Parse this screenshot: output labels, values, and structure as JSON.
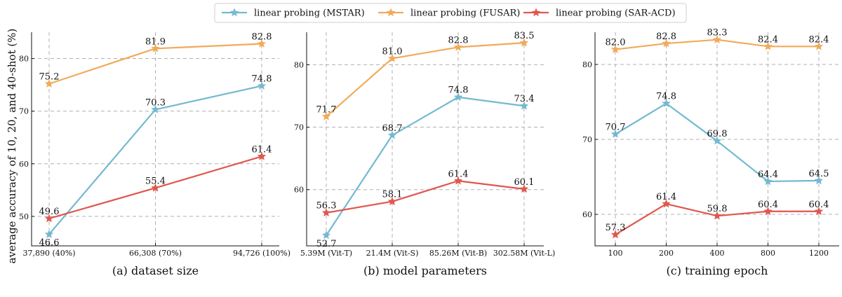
{
  "colors": {
    "mstar": "#74b9d0",
    "fusar": "#f2aa5a",
    "saracd": "#e0574e"
  },
  "legend": {
    "placement": "top-center",
    "entries": [
      {
        "label": "linear probing (MSTAR)",
        "color": "#74b9d0",
        "marker": "star"
      },
      {
        "label": "linear probing (FUSAR)",
        "color": "#f2aa5a",
        "marker": "star"
      },
      {
        "label": "linear probing (SAR-ACD)",
        "color": "#e0574e",
        "marker": "star"
      }
    ]
  },
  "chart_data": [
    {
      "type": "line",
      "xlabel": "(a) dataset size",
      "ylabel": "average accuracy of 10, 20, and 40-shot (%)",
      "x": [
        37890,
        66308,
        94726
      ],
      "xticks": [
        {
          "value": 37890,
          "label": "37,890 (40%)"
        },
        {
          "value": 66308,
          "label": "66,308 (70%)"
        },
        {
          "value": 94726,
          "label": "94,726 (100%)"
        }
      ],
      "xlim": [
        37890,
        94726
      ],
      "ylim": [
        44.4,
        85
      ],
      "yticks": [
        50,
        60,
        70,
        80
      ],
      "grid": true,
      "series": [
        {
          "name": "linear probing (MSTAR)",
          "color": "#74b9d0",
          "values": [
            46.6,
            70.3,
            74.8
          ],
          "labels": [
            "46.6",
            "70.3",
            "74.8"
          ]
        },
        {
          "name": "linear probing (FUSAR)",
          "color": "#f2aa5a",
          "values": [
            75.2,
            81.9,
            82.8
          ],
          "labels": [
            "75.2",
            "81.9",
            "82.8"
          ]
        },
        {
          "name": "linear probing (SAR-ACD)",
          "color": "#e0574e",
          "values": [
            49.6,
            55.4,
            61.4
          ],
          "labels": [
            "49.6",
            "55.4",
            "61.4"
          ]
        }
      ]
    },
    {
      "type": "line",
      "xlabel": "(b) model parameters",
      "ylabel": "",
      "x": [
        0,
        1,
        2,
        3
      ],
      "xticks": [
        {
          "value": 0,
          "label": "5.39M (Vit-T)"
        },
        {
          "value": 1,
          "label": "21.4M (Vit-S)"
        },
        {
          "value": 2,
          "label": "85.26M (Vit-B)"
        },
        {
          "value": 3,
          "label": "302.58M (Vit-L)"
        }
      ],
      "xlim": [
        0,
        3
      ],
      "ylim": [
        51.0,
        85.2
      ],
      "yticks": [
        60,
        70,
        80
      ],
      "grid": true,
      "series": [
        {
          "name": "linear probing (MSTAR)",
          "color": "#74b9d0",
          "values": [
            52.7,
            68.7,
            74.8,
            73.4
          ],
          "labels": [
            "52.7",
            "68.7",
            "74.8",
            "73.4"
          ]
        },
        {
          "name": "linear probing (FUSAR)",
          "color": "#f2aa5a",
          "values": [
            71.7,
            81.0,
            82.8,
            83.5
          ],
          "labels": [
            "71.7",
            "81.0",
            "82.8",
            "83.5"
          ]
        },
        {
          "name": "linear probing (SAR-ACD)",
          "color": "#e0574e",
          "values": [
            56.3,
            58.1,
            61.4,
            60.1
          ],
          "labels": [
            "56.3",
            "58.1",
            "61.4",
            "60.1"
          ]
        }
      ]
    },
    {
      "type": "line",
      "xlabel": "(c) training epoch",
      "ylabel": "",
      "x": [
        0,
        1,
        2,
        3,
        4
      ],
      "xticks": [
        {
          "value": 0,
          "label": "100"
        },
        {
          "value": 1,
          "label": "200"
        },
        {
          "value": 2,
          "label": "400"
        },
        {
          "value": 3,
          "label": "800"
        },
        {
          "value": 4,
          "label": "1200"
        }
      ],
      "xlim": [
        0,
        4
      ],
      "ylim": [
        55.8,
        84.3
      ],
      "yticks": [
        60,
        70,
        80
      ],
      "grid": true,
      "series": [
        {
          "name": "linear probing (MSTAR)",
          "color": "#74b9d0",
          "values": [
            70.7,
            74.8,
            69.8,
            64.4,
            64.5
          ],
          "labels": [
            "70.7",
            "74.8",
            "69.8",
            "64.4",
            "64.5"
          ]
        },
        {
          "name": "linear probing (FUSAR)",
          "color": "#f2aa5a",
          "values": [
            82.0,
            82.8,
            83.3,
            82.4,
            82.4
          ],
          "labels": [
            "82.0",
            "82.8",
            "83.3",
            "82.4",
            "82.4"
          ]
        },
        {
          "name": "linear probing (SAR-ACD)",
          "color": "#e0574e",
          "values": [
            57.3,
            61.4,
            59.8,
            60.4,
            60.4
          ],
          "labels": [
            "57.3",
            "61.4",
            "59.8",
            "60.4",
            "60.4"
          ]
        }
      ]
    }
  ]
}
